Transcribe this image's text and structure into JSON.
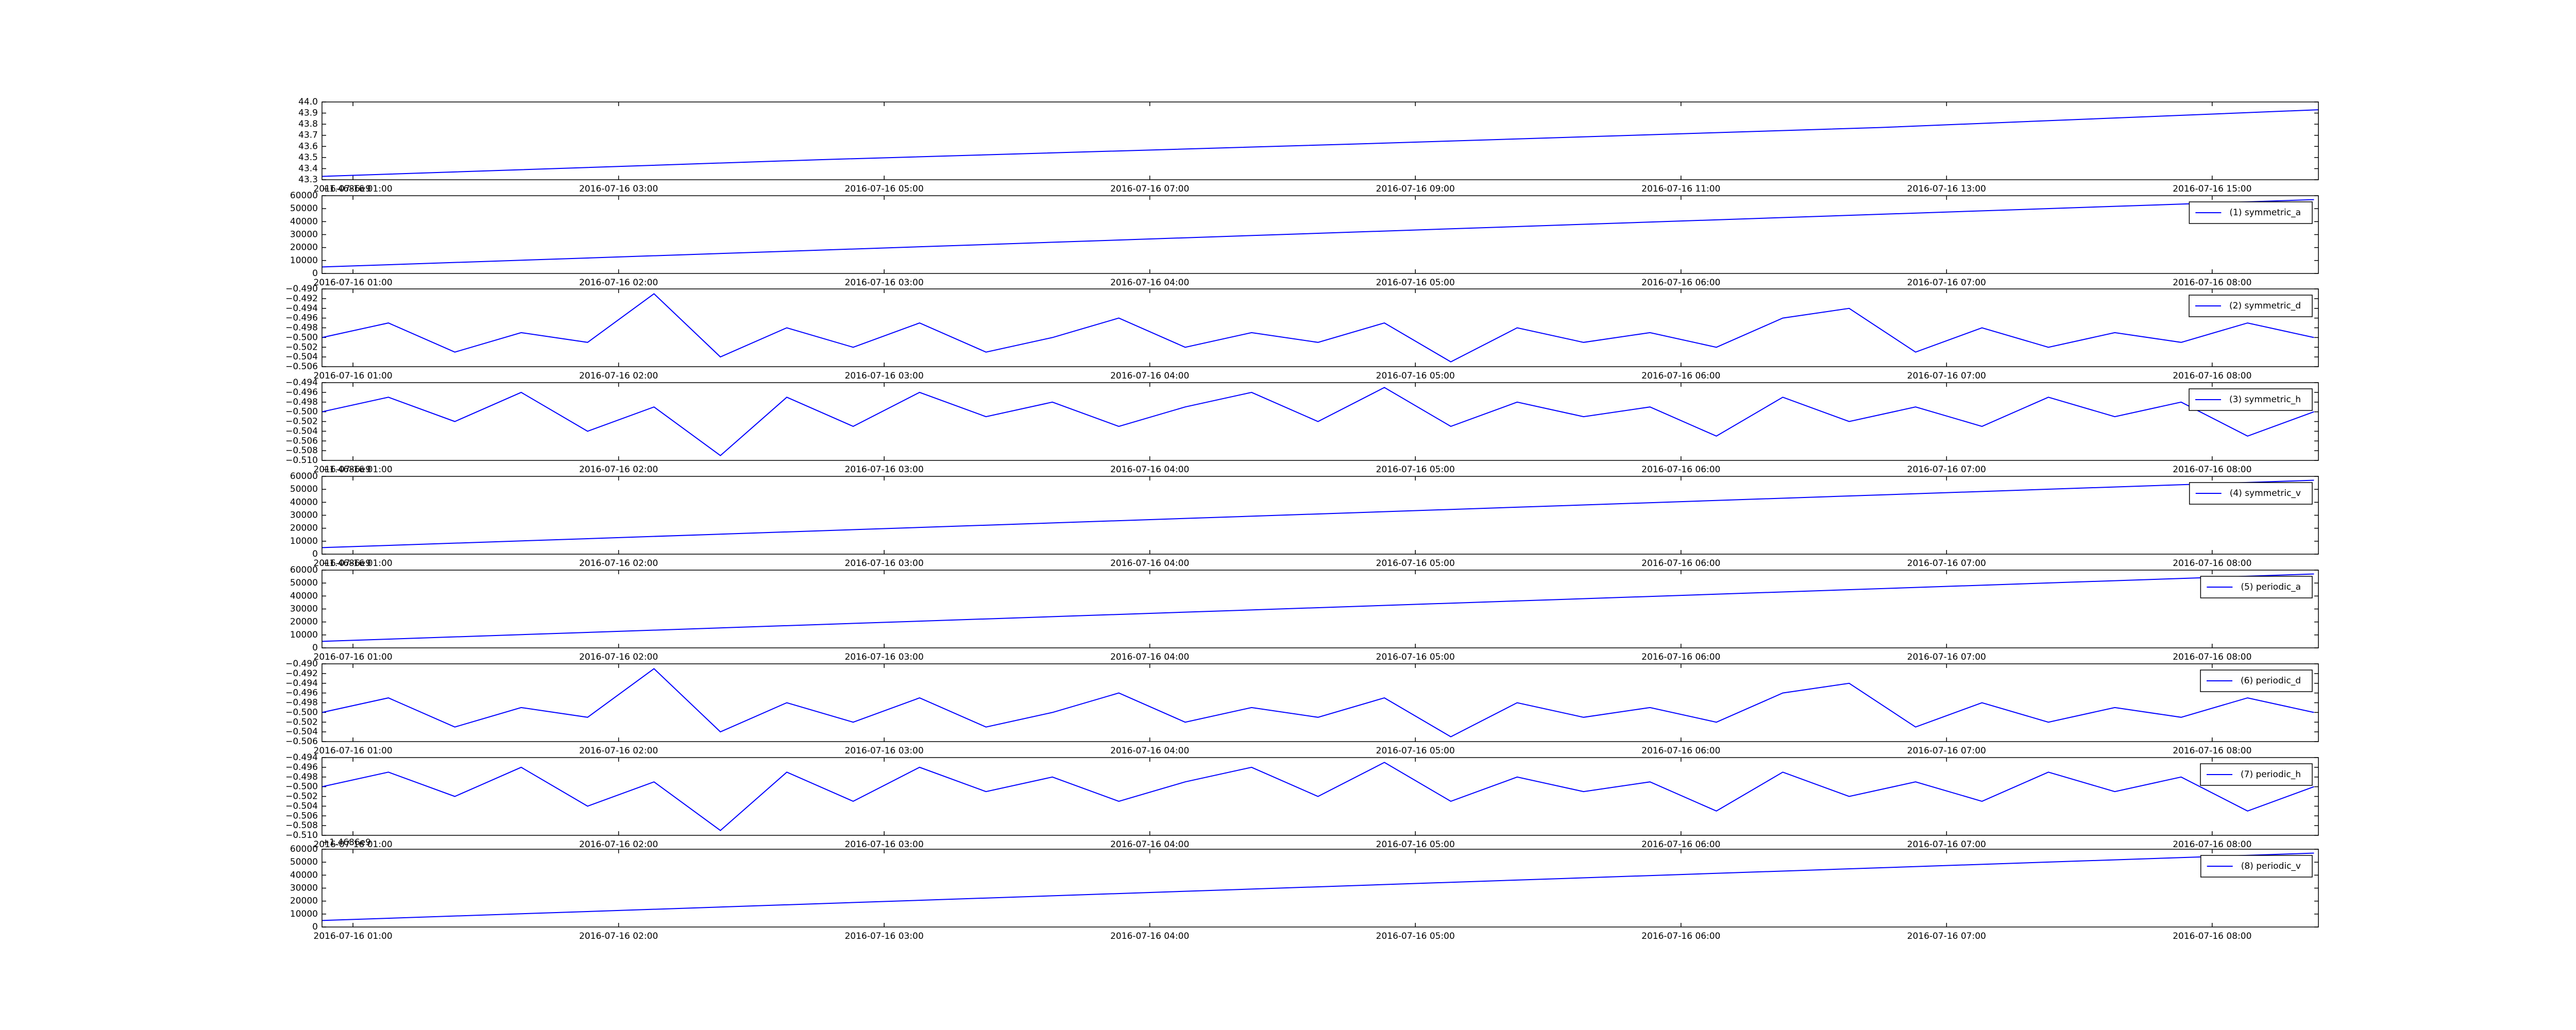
{
  "chart_data": [
    {
      "type": "line",
      "x": [
        "2016-07-16 00:46",
        "2016-07-16 04:30",
        "2016-07-16 08:30",
        "2016-07-16 12:30",
        "2016-07-16 15:48"
      ],
      "values": [
        43.33,
        43.48,
        43.62,
        43.77,
        43.93
      ],
      "color": "#0000ff",
      "xlim": [
        "2016-07-16 00:46",
        "2016-07-16 15:48"
      ],
      "xticks": [
        "2016-07-16 01:00",
        "2016-07-16 03:00",
        "2016-07-16 05:00",
        "2016-07-16 07:00",
        "2016-07-16 09:00",
        "2016-07-16 11:00",
        "2016-07-16 13:00",
        "2016-07-16 15:00"
      ],
      "ylim": [
        43.3,
        44.0
      ],
      "yticks": [
        43.3,
        43.4,
        43.5,
        43.6,
        43.7,
        43.8,
        43.9,
        {
          "value": 44.0,
          "label": "44.0"
        }
      ]
    },
    {
      "type": "line",
      "offset_text": "+1.4686e9",
      "x": [
        "2016-07-16 00:53",
        "2016-07-16 08:23"
      ],
      "series": [
        {
          "name": "(1) symmetric_a",
          "color": "#0000ff",
          "values": [
            5000,
            57000
          ]
        }
      ],
      "xlim": [
        "2016-07-16 00:53",
        "2016-07-16 08:24"
      ],
      "xticks": [
        "2016-07-16 01:00",
        "2016-07-16 02:00",
        "2016-07-16 03:00",
        "2016-07-16 04:00",
        "2016-07-16 05:00",
        "2016-07-16 06:00",
        "2016-07-16 07:00",
        "2016-07-16 08:00"
      ],
      "ylim": [
        0,
        60000
      ],
      "yticks": [
        0,
        10000,
        20000,
        30000,
        40000,
        50000,
        60000
      ]
    },
    {
      "type": "line",
      "x": [
        "2016-07-16 00:53",
        "2016-07-16 01:08",
        "2016-07-16 01:23",
        "2016-07-16 01:38",
        "2016-07-16 01:53",
        "2016-07-16 02:08",
        "2016-07-16 02:23",
        "2016-07-16 02:38",
        "2016-07-16 02:53",
        "2016-07-16 03:08",
        "2016-07-16 03:23",
        "2016-07-16 03:38",
        "2016-07-16 03:53",
        "2016-07-16 04:08",
        "2016-07-16 04:23",
        "2016-07-16 04:38",
        "2016-07-16 04:53",
        "2016-07-16 05:08",
        "2016-07-16 05:23",
        "2016-07-16 05:38",
        "2016-07-16 05:53",
        "2016-07-16 06:08",
        "2016-07-16 06:23",
        "2016-07-16 06:38",
        "2016-07-16 06:53",
        "2016-07-16 07:08",
        "2016-07-16 07:23",
        "2016-07-16 07:38",
        "2016-07-16 07:53",
        "2016-07-16 08:08",
        "2016-07-16 08:23"
      ],
      "series": [
        {
          "name": "(2) symmetric_d",
          "color": "#0000ff",
          "values": [
            -0.5,
            -0.497,
            -0.503,
            -0.499,
            -0.501,
            -0.491,
            -0.504,
            -0.498,
            -0.502,
            -0.497,
            -0.503,
            -0.5,
            -0.496,
            -0.502,
            -0.499,
            -0.501,
            -0.497,
            -0.505,
            -0.498,
            -0.501,
            -0.499,
            -0.502,
            -0.496,
            -0.494,
            -0.503,
            -0.498,
            -0.502,
            -0.499,
            -0.501,
            -0.497,
            -0.5
          ]
        }
      ],
      "xlim": [
        "2016-07-16 00:53",
        "2016-07-16 08:24"
      ],
      "xticks": [
        "2016-07-16 01:00",
        "2016-07-16 02:00",
        "2016-07-16 03:00",
        "2016-07-16 04:00",
        "2016-07-16 05:00",
        "2016-07-16 06:00",
        "2016-07-16 07:00",
        "2016-07-16 08:00"
      ],
      "ylim": [
        -0.506,
        -0.49
      ],
      "yticks": [
        {
          "value": -0.506,
          "label": "−0.506"
        },
        {
          "value": -0.504,
          "label": "−0.504"
        },
        {
          "value": -0.502,
          "label": "−0.502"
        },
        {
          "value": -0.5,
          "label": "−0.500"
        },
        {
          "value": -0.498,
          "label": "−0.498"
        },
        {
          "value": -0.496,
          "label": "−0.496"
        },
        {
          "value": -0.494,
          "label": "−0.494"
        },
        {
          "value": -0.492,
          "label": "−0.492"
        },
        {
          "value": -0.49,
          "label": "−0.490"
        }
      ]
    },
    {
      "type": "line",
      "x": [
        "2016-07-16 00:53",
        "2016-07-16 01:08",
        "2016-07-16 01:23",
        "2016-07-16 01:38",
        "2016-07-16 01:53",
        "2016-07-16 02:08",
        "2016-07-16 02:23",
        "2016-07-16 02:38",
        "2016-07-16 02:53",
        "2016-07-16 03:08",
        "2016-07-16 03:23",
        "2016-07-16 03:38",
        "2016-07-16 03:53",
        "2016-07-16 04:08",
        "2016-07-16 04:23",
        "2016-07-16 04:38",
        "2016-07-16 04:53",
        "2016-07-16 05:08",
        "2016-07-16 05:23",
        "2016-07-16 05:38",
        "2016-07-16 05:53",
        "2016-07-16 06:08",
        "2016-07-16 06:23",
        "2016-07-16 06:38",
        "2016-07-16 06:53",
        "2016-07-16 07:08",
        "2016-07-16 07:23",
        "2016-07-16 07:38",
        "2016-07-16 07:53",
        "2016-07-16 08:08",
        "2016-07-16 08:23"
      ],
      "series": [
        {
          "name": "(3) symmetric_h",
          "color": "#0000ff",
          "values": [
            -0.5,
            -0.497,
            -0.502,
            -0.496,
            -0.504,
            -0.499,
            -0.509,
            -0.497,
            -0.503,
            -0.496,
            -0.501,
            -0.498,
            -0.503,
            -0.499,
            -0.496,
            -0.502,
            -0.495,
            -0.503,
            -0.498,
            -0.501,
            -0.499,
            -0.505,
            -0.497,
            -0.502,
            -0.499,
            -0.503,
            -0.497,
            -0.501,
            -0.498,
            -0.505,
            -0.5
          ]
        }
      ],
      "xlim": [
        "2016-07-16 00:53",
        "2016-07-16 08:24"
      ],
      "xticks": [
        "2016-07-16 01:00",
        "2016-07-16 02:00",
        "2016-07-16 03:00",
        "2016-07-16 04:00",
        "2016-07-16 05:00",
        "2016-07-16 06:00",
        "2016-07-16 07:00",
        "2016-07-16 08:00"
      ],
      "ylim": [
        -0.51,
        -0.494
      ],
      "yticks": [
        {
          "value": -0.51,
          "label": "−0.510"
        },
        {
          "value": -0.508,
          "label": "−0.508"
        },
        {
          "value": -0.506,
          "label": "−0.506"
        },
        {
          "value": -0.504,
          "label": "−0.504"
        },
        {
          "value": -0.502,
          "label": "−0.502"
        },
        {
          "value": -0.5,
          "label": "−0.500"
        },
        {
          "value": -0.498,
          "label": "−0.498"
        },
        {
          "value": -0.496,
          "label": "−0.496"
        },
        {
          "value": -0.494,
          "label": "−0.494"
        }
      ]
    },
    {
      "type": "line",
      "offset_text": "+1.4686e9",
      "x": [
        "2016-07-16 00:53",
        "2016-07-16 08:23"
      ],
      "series": [
        {
          "name": "(4) symmetric_v",
          "color": "#0000ff",
          "values": [
            5000,
            57000
          ]
        }
      ],
      "xlim": [
        "2016-07-16 00:53",
        "2016-07-16 08:24"
      ],
      "xticks": [
        "2016-07-16 01:00",
        "2016-07-16 02:00",
        "2016-07-16 03:00",
        "2016-07-16 04:00",
        "2016-07-16 05:00",
        "2016-07-16 06:00",
        "2016-07-16 07:00",
        "2016-07-16 08:00"
      ],
      "ylim": [
        0,
        60000
      ],
      "yticks": [
        0,
        10000,
        20000,
        30000,
        40000,
        50000,
        60000
      ]
    },
    {
      "type": "line",
      "offset_text": "+1.4686e9",
      "x": [
        "2016-07-16 00:53",
        "2016-07-16 08:23"
      ],
      "series": [
        {
          "name": "(5) periodic_a",
          "color": "#0000ff",
          "values": [
            5000,
            57000
          ]
        }
      ],
      "xlim": [
        "2016-07-16 00:53",
        "2016-07-16 08:24"
      ],
      "xticks": [
        "2016-07-16 01:00",
        "2016-07-16 02:00",
        "2016-07-16 03:00",
        "2016-07-16 04:00",
        "2016-07-16 05:00",
        "2016-07-16 06:00",
        "2016-07-16 07:00",
        "2016-07-16 08:00"
      ],
      "ylim": [
        0,
        60000
      ],
      "yticks": [
        0,
        10000,
        20000,
        30000,
        40000,
        50000,
        60000
      ]
    },
    {
      "type": "line",
      "x": [
        "2016-07-16 00:53",
        "2016-07-16 01:08",
        "2016-07-16 01:23",
        "2016-07-16 01:38",
        "2016-07-16 01:53",
        "2016-07-16 02:08",
        "2016-07-16 02:23",
        "2016-07-16 02:38",
        "2016-07-16 02:53",
        "2016-07-16 03:08",
        "2016-07-16 03:23",
        "2016-07-16 03:38",
        "2016-07-16 03:53",
        "2016-07-16 04:08",
        "2016-07-16 04:23",
        "2016-07-16 04:38",
        "2016-07-16 04:53",
        "2016-07-16 05:08",
        "2016-07-16 05:23",
        "2016-07-16 05:38",
        "2016-07-16 05:53",
        "2016-07-16 06:08",
        "2016-07-16 06:23",
        "2016-07-16 06:38",
        "2016-07-16 06:53",
        "2016-07-16 07:08",
        "2016-07-16 07:23",
        "2016-07-16 07:38",
        "2016-07-16 07:53",
        "2016-07-16 08:08",
        "2016-07-16 08:23"
      ],
      "series": [
        {
          "name": "(6) periodic_d",
          "color": "#0000ff",
          "values": [
            -0.5,
            -0.497,
            -0.503,
            -0.499,
            -0.501,
            -0.491,
            -0.504,
            -0.498,
            -0.502,
            -0.497,
            -0.503,
            -0.5,
            -0.496,
            -0.502,
            -0.499,
            -0.501,
            -0.497,
            -0.505,
            -0.498,
            -0.501,
            -0.499,
            -0.502,
            -0.496,
            -0.494,
            -0.503,
            -0.498,
            -0.502,
            -0.499,
            -0.501,
            -0.497,
            -0.5
          ]
        }
      ],
      "xlim": [
        "2016-07-16 00:53",
        "2016-07-16 08:24"
      ],
      "xticks": [
        "2016-07-16 01:00",
        "2016-07-16 02:00",
        "2016-07-16 03:00",
        "2016-07-16 04:00",
        "2016-07-16 05:00",
        "2016-07-16 06:00",
        "2016-07-16 07:00",
        "2016-07-16 08:00"
      ],
      "ylim": [
        -0.506,
        -0.49
      ],
      "yticks": [
        {
          "value": -0.506,
          "label": "−0.506"
        },
        {
          "value": -0.504,
          "label": "−0.504"
        },
        {
          "value": -0.502,
          "label": "−0.502"
        },
        {
          "value": -0.5,
          "label": "−0.500"
        },
        {
          "value": -0.498,
          "label": "−0.498"
        },
        {
          "value": -0.496,
          "label": "−0.496"
        },
        {
          "value": -0.494,
          "label": "−0.494"
        },
        {
          "value": -0.492,
          "label": "−0.492"
        },
        {
          "value": -0.49,
          "label": "−0.490"
        }
      ]
    },
    {
      "type": "line",
      "x": [
        "2016-07-16 00:53",
        "2016-07-16 01:08",
        "2016-07-16 01:23",
        "2016-07-16 01:38",
        "2016-07-16 01:53",
        "2016-07-16 02:08",
        "2016-07-16 02:23",
        "2016-07-16 02:38",
        "2016-07-16 02:53",
        "2016-07-16 03:08",
        "2016-07-16 03:23",
        "2016-07-16 03:38",
        "2016-07-16 03:53",
        "2016-07-16 04:08",
        "2016-07-16 04:23",
        "2016-07-16 04:38",
        "2016-07-16 04:53",
        "2016-07-16 05:08",
        "2016-07-16 05:23",
        "2016-07-16 05:38",
        "2016-07-16 05:53",
        "2016-07-16 06:08",
        "2016-07-16 06:23",
        "2016-07-16 06:38",
        "2016-07-16 06:53",
        "2016-07-16 07:08",
        "2016-07-16 07:23",
        "2016-07-16 07:38",
        "2016-07-16 07:53",
        "2016-07-16 08:08",
        "2016-07-16 08:23"
      ],
      "series": [
        {
          "name": "(7) periodic_h",
          "color": "#0000ff",
          "values": [
            -0.5,
            -0.497,
            -0.502,
            -0.496,
            -0.504,
            -0.499,
            -0.509,
            -0.497,
            -0.503,
            -0.496,
            -0.501,
            -0.498,
            -0.503,
            -0.499,
            -0.496,
            -0.502,
            -0.495,
            -0.503,
            -0.498,
            -0.501,
            -0.499,
            -0.505,
            -0.497,
            -0.502,
            -0.499,
            -0.503,
            -0.497,
            -0.501,
            -0.498,
            -0.505,
            -0.5
          ]
        }
      ],
      "xlim": [
        "2016-07-16 00:53",
        "2016-07-16 08:24"
      ],
      "xticks": [
        "2016-07-16 01:00",
        "2016-07-16 02:00",
        "2016-07-16 03:00",
        "2016-07-16 04:00",
        "2016-07-16 05:00",
        "2016-07-16 06:00",
        "2016-07-16 07:00",
        "2016-07-16 08:00"
      ],
      "ylim": [
        -0.51,
        -0.494
      ],
      "yticks": [
        {
          "value": -0.51,
          "label": "−0.510"
        },
        {
          "value": -0.508,
          "label": "−0.508"
        },
        {
          "value": -0.506,
          "label": "−0.506"
        },
        {
          "value": -0.504,
          "label": "−0.504"
        },
        {
          "value": -0.502,
          "label": "−0.502"
        },
        {
          "value": -0.5,
          "label": "−0.500"
        },
        {
          "value": -0.498,
          "label": "−0.498"
        },
        {
          "value": -0.496,
          "label": "−0.496"
        },
        {
          "value": -0.494,
          "label": "−0.494"
        }
      ]
    },
    {
      "type": "line",
      "offset_text": "+1.4686e9",
      "x": [
        "2016-07-16 00:53",
        "2016-07-16 08:23"
      ],
      "series": [
        {
          "name": "(8) periodic_v",
          "color": "#0000ff",
          "values": [
            5000,
            57000
          ]
        }
      ],
      "xlim": [
        "2016-07-16 00:53",
        "2016-07-16 08:24"
      ],
      "xticks": [
        "2016-07-16 01:00",
        "2016-07-16 02:00",
        "2016-07-16 03:00",
        "2016-07-16 04:00",
        "2016-07-16 05:00",
        "2016-07-16 06:00",
        "2016-07-16 07:00",
        "2016-07-16 08:00"
      ],
      "ylim": [
        0,
        60000
      ],
      "yticks": [
        0,
        10000,
        20000,
        30000,
        40000,
        50000,
        60000
      ]
    }
  ]
}
